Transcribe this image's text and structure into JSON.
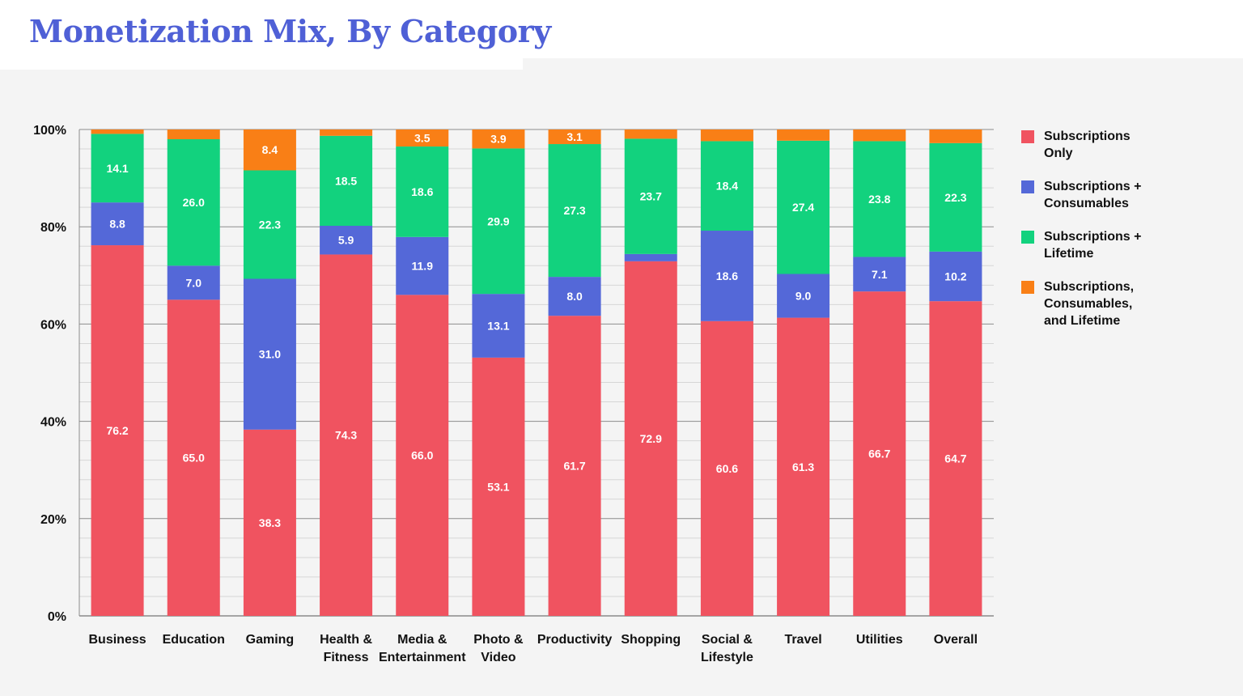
{
  "title": "Monetization Mix, By Category",
  "colors": {
    "subs_only": "#f05360",
    "subs_consumables": "#5468d8",
    "subs_lifetime": "#12d27e",
    "subs_all": "#f97f16"
  },
  "chart_data": {
    "type": "bar",
    "stacked": true,
    "title": "Monetization Mix, By Category",
    "xlabel": "",
    "ylabel": "",
    "ylim": [
      0,
      100
    ],
    "y_ticks": [
      "0%",
      "20%",
      "40%",
      "60%",
      "80%",
      "100%"
    ],
    "grid": true,
    "legend_position": "right",
    "categories": [
      [
        "Business"
      ],
      [
        "Education"
      ],
      [
        "Gaming"
      ],
      [
        "Health &",
        "Fitness"
      ],
      [
        "Media &",
        "Entertainment"
      ],
      [
        "Photo &",
        "Video"
      ],
      [
        "Productivity"
      ],
      [
        "Shopping"
      ],
      [
        "Social &",
        "Lifestyle"
      ],
      [
        "Travel"
      ],
      [
        "Utilities"
      ],
      [
        "Overall"
      ]
    ],
    "series": [
      {
        "name": "Subscriptions\nOnly",
        "color": "#f05360",
        "values": [
          76.2,
          65.0,
          38.3,
          74.3,
          66.0,
          53.1,
          61.7,
          72.9,
          60.6,
          61.3,
          66.7,
          64.7
        ],
        "labels": [
          "76.2",
          "65.0",
          "38.3",
          "74.3",
          "66.0",
          "53.1",
          "61.7",
          "72.9",
          "60.6",
          "61.3",
          "66.7",
          "64.7"
        ]
      },
      {
        "name": "Subscriptions +\nConsumables",
        "color": "#5468d8",
        "values": [
          8.8,
          7.0,
          31.0,
          5.9,
          11.9,
          13.1,
          8.0,
          1.5,
          18.6,
          9.0,
          7.1,
          10.2
        ],
        "labels": [
          "8.8",
          "7.0",
          "31.0",
          "5.9",
          "11.9",
          "13.1",
          "8.0",
          "",
          "18.6",
          "9.0",
          "7.1",
          "10.2"
        ]
      },
      {
        "name": "Subscriptions +\nLifetime",
        "color": "#12d27e",
        "values": [
          14.1,
          26.0,
          22.3,
          18.5,
          18.6,
          29.9,
          27.3,
          23.7,
          18.4,
          27.4,
          23.8,
          22.3
        ],
        "labels": [
          "14.1",
          "26.0",
          "22.3",
          "18.5",
          "18.6",
          "29.9",
          "27.3",
          "23.7",
          "18.4",
          "27.4",
          "23.8",
          "22.3"
        ]
      },
      {
        "name": "Subscriptions,\nConsumables,\nand Lifetime",
        "color": "#f97f16",
        "values": [
          0.9,
          2.0,
          8.4,
          1.3,
          3.5,
          3.9,
          3.1,
          1.9,
          2.4,
          2.3,
          2.4,
          2.8
        ],
        "labels": [
          "",
          "",
          "8.4",
          "",
          "3.5",
          "3.9",
          "3.1",
          "",
          "",
          "",
          "",
          ""
        ]
      }
    ]
  }
}
